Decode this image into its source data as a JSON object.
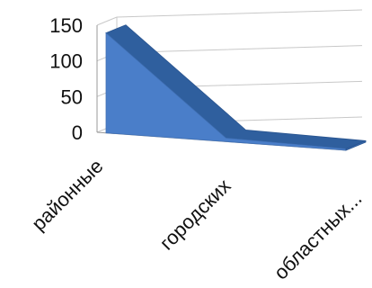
{
  "chart_data": {
    "type": "area",
    "categories": [
      "районные",
      "городских",
      "областных..."
    ],
    "values": [
      140,
      5,
      2
    ],
    "ylim": [
      0,
      150
    ],
    "yticks": [
      0,
      50,
      100,
      150
    ],
    "grid": true,
    "three_d": true,
    "colors": {
      "front": "#4a7ec9",
      "top": "#2f5f9e",
      "side": "#3a6bb0",
      "grid": "#c8c8c8",
      "axis": "#9a9a9a"
    }
  }
}
